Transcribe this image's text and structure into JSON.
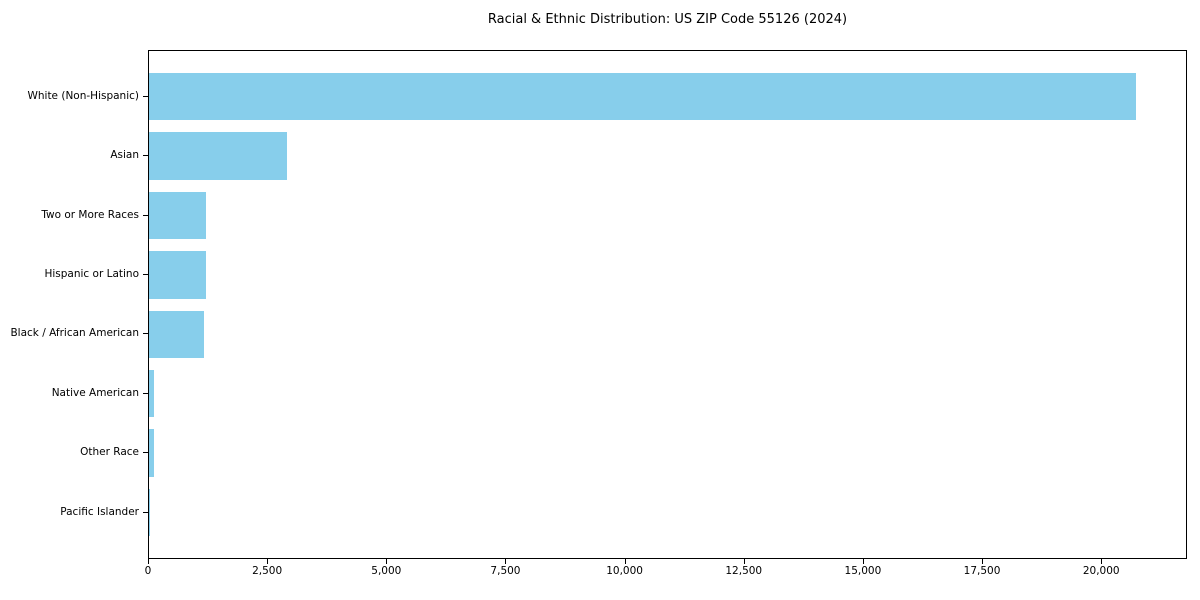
{
  "figure": {
    "title": "Racial & Ethnic Distribution: US ZIP Code 55126 (2024)"
  },
  "chart_data": {
    "type": "bar",
    "orientation": "horizontal",
    "title": "Racial & Ethnic Distribution: US ZIP Code 55126 (2024)",
    "categories": [
      "White (Non-Hispanic)",
      "Asian",
      "Two or More Races",
      "Hispanic or Latino",
      "Black / African American",
      "Native American",
      "Other Race",
      "Pacific Islander"
    ],
    "values": [
      20745,
      2905,
      1195,
      1190,
      1165,
      115,
      95,
      10
    ],
    "sort_order": "descending",
    "xlabel": "",
    "ylabel": "",
    "xlim": [
      0,
      21800
    ],
    "xticks": [
      0,
      2500,
      5000,
      7500,
      10000,
      12500,
      15000,
      17500,
      20000
    ],
    "xtick_labels": [
      "0",
      "2,500",
      "5,000",
      "7,500",
      "10,000",
      "12,500",
      "15,000",
      "17,500",
      "20,000"
    ],
    "bar_color": "#87CEEB",
    "axis_color": "#000000",
    "text_color": "#000000",
    "background_color": "#FFFFFF",
    "grid": false,
    "legend_position": "none"
  }
}
